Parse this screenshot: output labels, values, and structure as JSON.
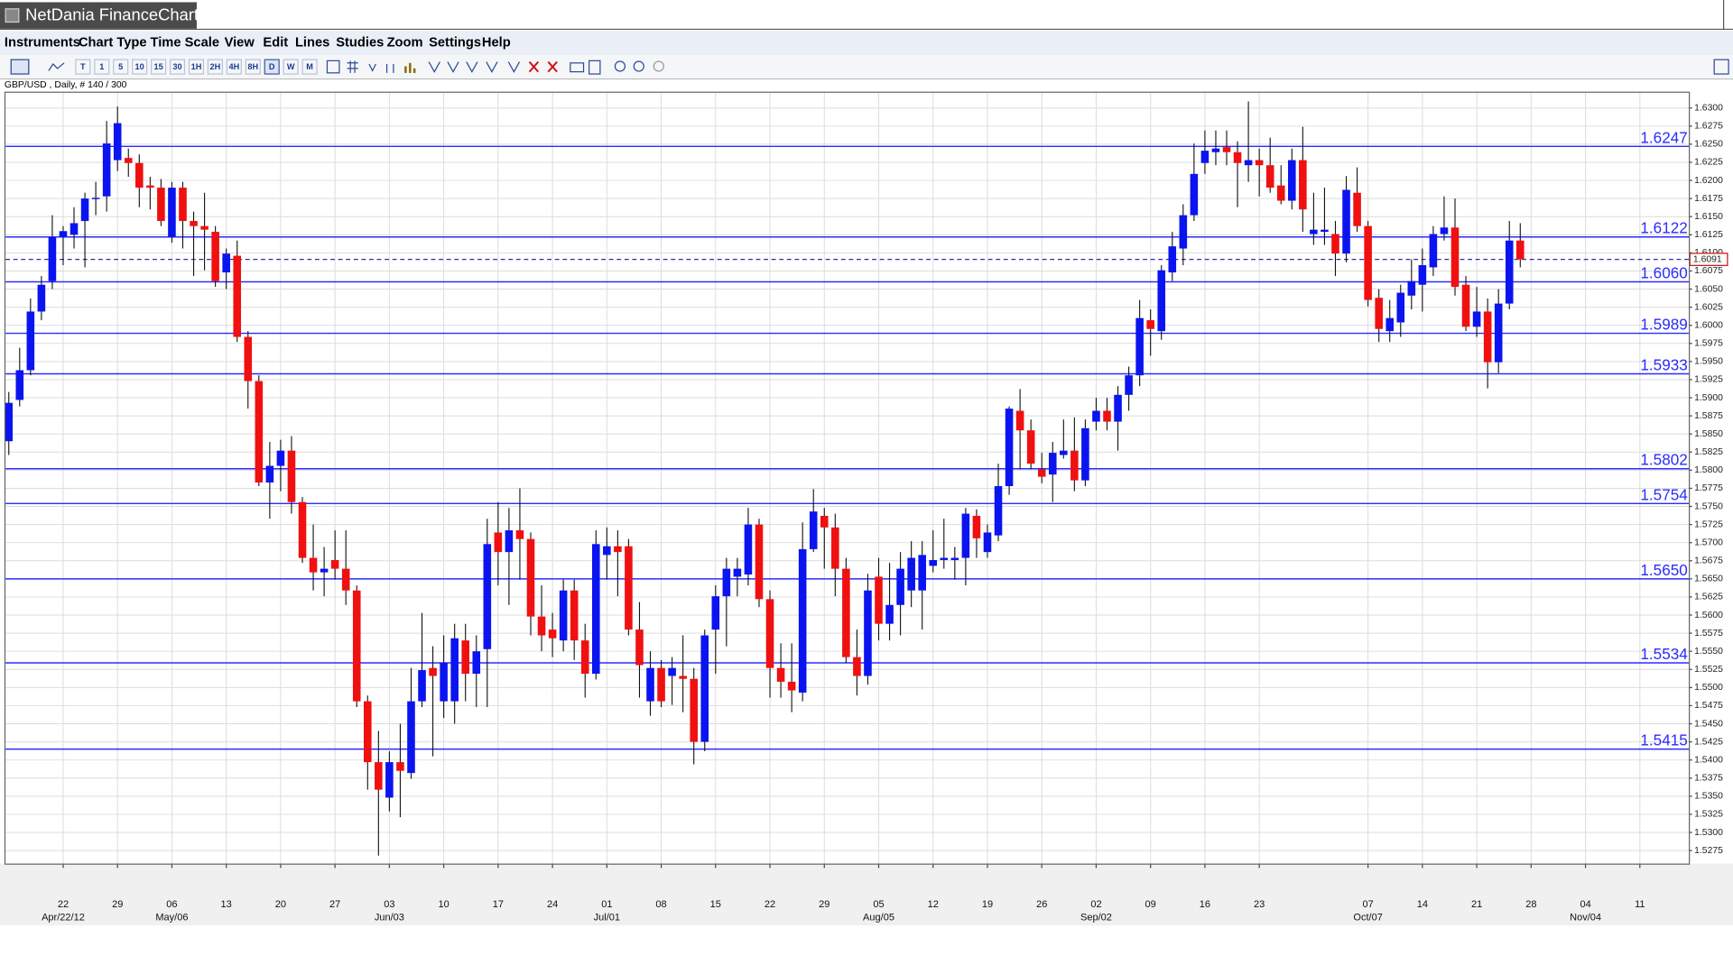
{
  "window": {
    "title": "NetDania FinanceChart"
  },
  "menu": [
    "Instruments",
    "Chart Type",
    "Time Scale",
    "View",
    "Edit",
    "Lines",
    "Studies",
    "Zoom",
    "Settings",
    "Help"
  ],
  "toolbar": {
    "buttons": [
      "T",
      "1",
      "5",
      "10",
      "15",
      "30",
      "1H",
      "2H",
      "4H",
      "8H",
      "D",
      "W",
      "M"
    ]
  },
  "chart_data": {
    "type": "candlestick",
    "instrument_label": "GBP/USD , Daily, # 140 / 300",
    "open": [
      1.584,
      1.5897,
      1.5938,
      1.6019,
      1.6061,
      1.6122,
      1.6125,
      1.6144,
      1.6175,
      1.6178,
      1.6228,
      1.6231,
      1.6224,
      1.6193,
      1.619,
      1.6122,
      1.619,
      1.6144,
      1.6137,
      1.6129,
      1.6073,
      1.6096,
      1.5984,
      1.5923,
      1.5783,
      1.5806,
      1.5827,
      1.5756,
      1.5679,
      1.5659,
      1.5676,
      1.5664,
      1.5634,
      1.5481,
      1.5397,
      1.5348,
      1.5397,
      1.5382,
      1.5481,
      1.5527,
      1.5481,
      1.5481,
      1.5565,
      1.5519,
      1.5553,
      1.5714,
      1.5687,
      1.5717,
      1.5705,
      1.5598,
      1.558,
      1.5565,
      1.5634,
      1.5565,
      1.5519,
      1.5683,
      1.5695,
      1.5695,
      1.558,
      1.5481,
      1.5527,
      1.5516,
      1.5516,
      1.5512,
      1.5425,
      1.558,
      1.5626,
      1.5653,
      1.5656,
      1.5725,
      1.5622,
      1.5527,
      1.5508,
      1.5493,
      1.5691,
      1.5737,
      1.5721,
      1.5664,
      1.5542,
      1.5516,
      1.5653,
      1.5588,
      1.5614,
      1.5634,
      1.5634,
      1.5668,
      1.5676,
      1.5676,
      1.5679,
      1.5737,
      1.5687,
      1.571,
      1.5778,
      1.5882,
      1.5855,
      1.5801,
      1.5794,
      1.5821,
      1.5827,
      1.5786,
      1.5867,
      1.5882,
      1.5867,
      1.5904,
      1.5931,
      1.6007,
      1.5992,
      1.6073,
      1.6106,
      1.6152,
      1.6224,
      1.6239,
      1.6246,
      1.6239,
      1.6221,
      1.6228,
      1.6221,
      1.6193,
      1.6172,
      1.6228,
      1.6126,
      1.6129,
      1.6126,
      1.6099,
      1.6183,
      1.6137,
      1.6038,
      1.5992,
      1.6004,
      1.6041,
      1.6056,
      1.608,
      1.6126,
      1.6135,
      1.6056,
      1.5998,
      1.6019,
      1.5949,
      1.603,
      1.6117
    ],
    "high": [
      1.5908,
      1.5969,
      1.6037,
      1.6068,
      1.6152,
      1.6137,
      1.6163,
      1.6183,
      1.6198,
      1.6282,
      1.6302,
      1.6244,
      1.6236,
      1.6205,
      1.6202,
      1.6198,
      1.6198,
      1.6157,
      1.6183,
      1.6137,
      1.6106,
      1.6117,
      1.5992,
      1.5931,
      1.5839,
      1.5842,
      1.5847,
      1.5763,
      1.5725,
      1.5694,
      1.5717,
      1.5717,
      1.5641,
      1.5489,
      1.544,
      1.5412,
      1.545,
      1.5527,
      1.5603,
      1.5557,
      1.5572,
      1.5588,
      1.5588,
      1.5572,
      1.5733,
      1.5756,
      1.5748,
      1.5775,
      1.5714,
      1.5641,
      1.5603,
      1.5649,
      1.5649,
      1.5588,
      1.5717,
      1.5721,
      1.5717,
      1.5705,
      1.5618,
      1.555,
      1.5538,
      1.5542,
      1.5572,
      1.5527,
      1.558,
      1.5641,
      1.5679,
      1.5679,
      1.5748,
      1.5733,
      1.5634,
      1.5561,
      1.5561,
      1.5728,
      1.5774,
      1.5748,
      1.574,
      1.5679,
      1.558,
      1.5657,
      1.5679,
      1.5672,
      1.5687,
      1.5702,
      1.5702,
      1.5717,
      1.5733,
      1.5694,
      1.5748,
      1.5746,
      1.5725,
      1.5809,
      1.5888,
      1.5912,
      1.587,
      1.5824,
      1.5839,
      1.587,
      1.5873,
      1.587,
      1.59,
      1.59,
      1.5916,
      1.5943,
      1.6035,
      1.6022,
      1.6083,
      1.6129,
      1.6167,
      1.6251,
      1.6269,
      1.6269,
      1.6269,
      1.6254,
      1.6309,
      1.6244,
      1.6259,
      1.6221,
      1.6244,
      1.6274,
      1.6183,
      1.619,
      1.6144,
      1.6206,
      1.6218,
      1.6144,
      1.605,
      1.6035,
      1.6056,
      1.6091,
      1.6106,
      1.6137,
      1.6178,
      1.6175,
      1.6068,
      1.6053,
      1.6037,
      1.605,
      1.6144,
      1.6141
    ],
    "low": [
      1.5821,
      1.5888,
      1.5931,
      1.6007,
      1.605,
      1.6083,
      1.6106,
      1.608,
      1.6152,
      1.6157,
      1.6213,
      1.6205,
      1.6163,
      1.616,
      1.6137,
      1.6114,
      1.6106,
      1.6068,
      1.6076,
      1.6053,
      1.605,
      1.5977,
      1.5885,
      1.5778,
      1.5733,
      1.5771,
      1.574,
      1.5672,
      1.5634,
      1.5626,
      1.5649,
      1.5614,
      1.5473,
      1.5359,
      1.5268,
      1.5329,
      1.5321,
      1.5374,
      1.5473,
      1.5405,
      1.5458,
      1.545,
      1.5481,
      1.5473,
      1.5473,
      1.5641,
      1.5614,
      1.5649,
      1.5572,
      1.555,
      1.5542,
      1.555,
      1.5538,
      1.5486,
      1.5511,
      1.5649,
      1.5626,
      1.5572,
      1.5486,
      1.5461,
      1.5473,
      1.5476,
      1.5466,
      1.5394,
      1.5412,
      1.5519,
      1.5557,
      1.5626,
      1.5641,
      1.5611,
      1.5486,
      1.5486,
      1.5466,
      1.5481,
      1.5687,
      1.5664,
      1.5626,
      1.5534,
      1.5489,
      1.5504,
      1.5565,
      1.5565,
      1.5572,
      1.5611,
      1.558,
      1.5659,
      1.5664,
      1.5649,
      1.5641,
      1.5679,
      1.5679,
      1.5702,
      1.5766,
      1.5801,
      1.5801,
      1.5782,
      1.5756,
      1.5816,
      1.5771,
      1.5778,
      1.5855,
      1.5855,
      1.5827,
      1.5882,
      1.5916,
      1.5958,
      1.598,
      1.6061,
      1.6083,
      1.6144,
      1.6209,
      1.6221,
      1.6221,
      1.6163,
      1.6198,
      1.6178,
      1.6183,
      1.6167,
      1.616,
      1.6129,
      1.6111,
      1.6111,
      1.6068,
      1.6087,
      1.6129,
      1.6026,
      1.5977,
      1.5977,
      1.5984,
      1.6022,
      1.6019,
      1.6068,
      1.6117,
      1.6041,
      1.5992,
      1.5984,
      1.5913,
      1.5934,
      1.6022,
      1.608
    ],
    "close": [
      1.5893,
      1.5938,
      1.6019,
      1.6056,
      1.6122,
      1.613,
      1.6141,
      1.6175,
      1.6176,
      1.6251,
      1.6279,
      1.6224,
      1.619,
      1.619,
      1.6144,
      1.619,
      1.6144,
      1.6137,
      1.6132,
      1.6061,
      1.6099,
      1.5984,
      1.5923,
      1.5783,
      1.5806,
      1.5827,
      1.5756,
      1.5679,
      1.5659,
      1.5664,
      1.5664,
      1.5634,
      1.5481,
      1.5397,
      1.5359,
      1.5397,
      1.5385,
      1.5481,
      1.5524,
      1.5516,
      1.5534,
      1.5568,
      1.5519,
      1.555,
      1.5698,
      1.5687,
      1.5717,
      1.5705,
      1.5598,
      1.5572,
      1.5568,
      1.5634,
      1.5565,
      1.5519,
      1.5698,
      1.5695,
      1.5687,
      1.558,
      1.5531,
      1.5527,
      1.5481,
      1.5527,
      1.5512,
      1.5425,
      1.5572,
      1.5626,
      1.5664,
      1.5664,
      1.5725,
      1.5622,
      1.5527,
      1.5508,
      1.5496,
      1.5691,
      1.5743,
      1.5721,
      1.5664,
      1.5542,
      1.5516,
      1.5634,
      1.5588,
      1.5614,
      1.5664,
      1.5679,
      1.5683,
      1.5676,
      1.5679,
      1.5679,
      1.574,
      1.5706,
      1.5714,
      1.5778,
      1.5885,
      1.5855,
      1.5809,
      1.5791,
      1.5824,
      1.5827,
      1.5786,
      1.5858,
      1.5882,
      1.5867,
      1.5904,
      1.5931,
      1.601,
      1.5995,
      1.6076,
      1.6109,
      1.6152,
      1.6209,
      1.6241,
      1.6244,
      1.6239,
      1.6224,
      1.6228,
      1.6221,
      1.619,
      1.6172,
      1.6228,
      1.616,
      1.6132,
      1.6132,
      1.6099,
      1.6187,
      1.6137,
      1.6035,
      1.5995,
      1.601,
      1.6045,
      1.6061,
      1.6083,
      1.6126,
      1.6135,
      1.6053,
      1.5998,
      1.6019,
      1.5949,
      1.603,
      1.6117,
      1.6091
    ],
    "up_color": "#0a14f0",
    "down_color": "#f01010",
    "xlim": [
      -0.3,
      154.5
    ],
    "xticks": [
      {
        "value": 5,
        "label": "22"
      },
      {
        "value": 10,
        "label": "29"
      },
      {
        "value": 15,
        "label": "06"
      },
      {
        "value": 20,
        "label": "13"
      },
      {
        "value": 25,
        "label": "20"
      },
      {
        "value": 30,
        "label": "27"
      },
      {
        "value": 35,
        "label": "03"
      },
      {
        "value": 40,
        "label": "10"
      },
      {
        "value": 45,
        "label": "17"
      },
      {
        "value": 50,
        "label": "24"
      },
      {
        "value": 55,
        "label": "01"
      },
      {
        "value": 60,
        "label": "08"
      },
      {
        "value": 65,
        "label": "15"
      },
      {
        "value": 70,
        "label": "22"
      },
      {
        "value": 75,
        "label": "29"
      },
      {
        "value": 80,
        "label": "05"
      },
      {
        "value": 85,
        "label": "12"
      },
      {
        "value": 90,
        "label": "19"
      },
      {
        "value": 95,
        "label": "26"
      },
      {
        "value": 100,
        "label": "02"
      },
      {
        "value": 105,
        "label": "09"
      },
      {
        "value": 110,
        "label": "16"
      },
      {
        "value": 115,
        "label": "23"
      },
      {
        "value": 125,
        "label": "07"
      },
      {
        "value": 130,
        "label": "14"
      },
      {
        "value": 135,
        "label": "21"
      },
      {
        "value": 140,
        "label": "28"
      },
      {
        "value": 145,
        "label": "04"
      },
      {
        "value": 150,
        "label": "11"
      }
    ],
    "month_ticks": [
      {
        "value": 5,
        "label": "Apr/22/12"
      },
      {
        "value": 15,
        "label": "May/06"
      },
      {
        "value": 35,
        "label": "Jun/03"
      },
      {
        "value": 55,
        "label": "Jul/01"
      },
      {
        "value": 80,
        "label": "Aug/05"
      },
      {
        "value": 100,
        "label": "Sep/02"
      },
      {
        "value": 125,
        "label": "Oct/07"
      },
      {
        "value": 145,
        "label": "Nov/04"
      }
    ],
    "ylim": [
      1.5257,
      1.6321
    ],
    "yticks": [
      {
        "value": 1.5275,
        "label": "1.5275"
      },
      {
        "value": 1.53,
        "label": "1.5300"
      },
      {
        "value": 1.5325,
        "label": "1.5325"
      },
      {
        "value": 1.535,
        "label": "1.5350"
      },
      {
        "value": 1.5375,
        "label": "1.5375"
      },
      {
        "value": 1.54,
        "label": "1.5400"
      },
      {
        "value": 1.5425,
        "label": "1.5425"
      },
      {
        "value": 1.545,
        "label": "1.5450"
      },
      {
        "value": 1.5475,
        "label": "1.5475"
      },
      {
        "value": 1.55,
        "label": "1.5500"
      },
      {
        "value": 1.5525,
        "label": "1.5525"
      },
      {
        "value": 1.555,
        "label": "1.5550"
      },
      {
        "value": 1.5575,
        "label": "1.5575"
      },
      {
        "value": 1.56,
        "label": "1.5600"
      },
      {
        "value": 1.5625,
        "label": "1.5625"
      },
      {
        "value": 1.565,
        "label": "1.5650"
      },
      {
        "value": 1.5675,
        "label": "1.5675"
      },
      {
        "value": 1.57,
        "label": "1.5700"
      },
      {
        "value": 1.5725,
        "label": "1.5725"
      },
      {
        "value": 1.575,
        "label": "1.5750"
      },
      {
        "value": 1.5775,
        "label": "1.5775"
      },
      {
        "value": 1.58,
        "label": "1.5800"
      },
      {
        "value": 1.5825,
        "label": "1.5825"
      },
      {
        "value": 1.585,
        "label": "1.5850"
      },
      {
        "value": 1.5875,
        "label": "1.5875"
      },
      {
        "value": 1.59,
        "label": "1.5900"
      },
      {
        "value": 1.5925,
        "label": "1.5925"
      },
      {
        "value": 1.595,
        "label": "1.5950"
      },
      {
        "value": 1.5975,
        "label": "1.5975"
      },
      {
        "value": 1.6,
        "label": "1.6000"
      },
      {
        "value": 1.6025,
        "label": "1.6025"
      },
      {
        "value": 1.605,
        "label": "1.6050"
      },
      {
        "value": 1.6075,
        "label": "1.6075"
      },
      {
        "value": 1.61,
        "label": "1.6100"
      },
      {
        "value": 1.6125,
        "label": "1.6125"
      },
      {
        "value": 1.615,
        "label": "1.6150"
      },
      {
        "value": 1.6175,
        "label": "1.6175"
      },
      {
        "value": 1.62,
        "label": "1.6200"
      },
      {
        "value": 1.6225,
        "label": "1.6225"
      },
      {
        "value": 1.625,
        "label": "1.6250"
      },
      {
        "value": 1.6275,
        "label": "1.6275"
      },
      {
        "value": 1.63,
        "label": "1.6300"
      }
    ],
    "grid": true,
    "levels": [
      1.6247,
      1.6122,
      {
        "value": 1.606,
        "label": "1.6060"
      },
      1.5989,
      1.5933,
      1.5802,
      1.5754,
      {
        "value": 1.565,
        "label": "1.5650"
      },
      1.5534,
      1.5415
    ],
    "level_color": "#2b2bff",
    "last_price": 1.6091
  }
}
